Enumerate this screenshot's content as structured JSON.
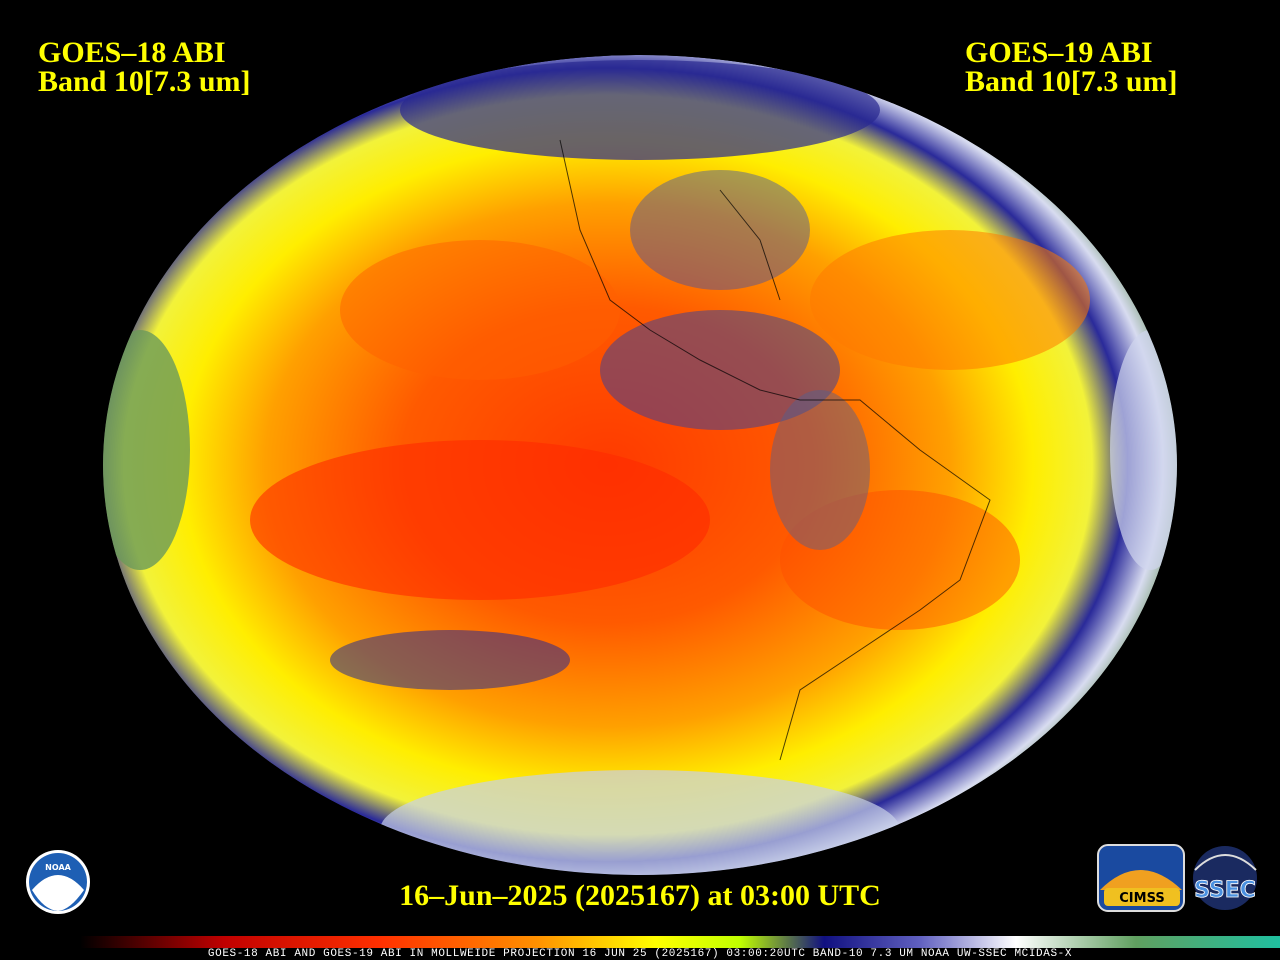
{
  "header": {
    "left": {
      "satellite": "GOES–18 ABI",
      "band": "Band 10[7.3 um]"
    },
    "right": {
      "satellite": "GOES–19 ABI",
      "band": "Band 10[7.3 um]"
    }
  },
  "timestamp": "16–Jun–2025 (2025167) at 03:00 UTC",
  "footer": "GOES-18 ABI AND GOES-19 ABI IN MOLLWEIDE PROJECTION 16 JUN 25 (2025167) 03:00:20UTC BAND-10 7.3 UM NOAA UW-SSEC MCIDAS-X",
  "logos": {
    "noaa": "NOAA",
    "cimss": "CIMSS",
    "ssec": "SSEC"
  }
}
